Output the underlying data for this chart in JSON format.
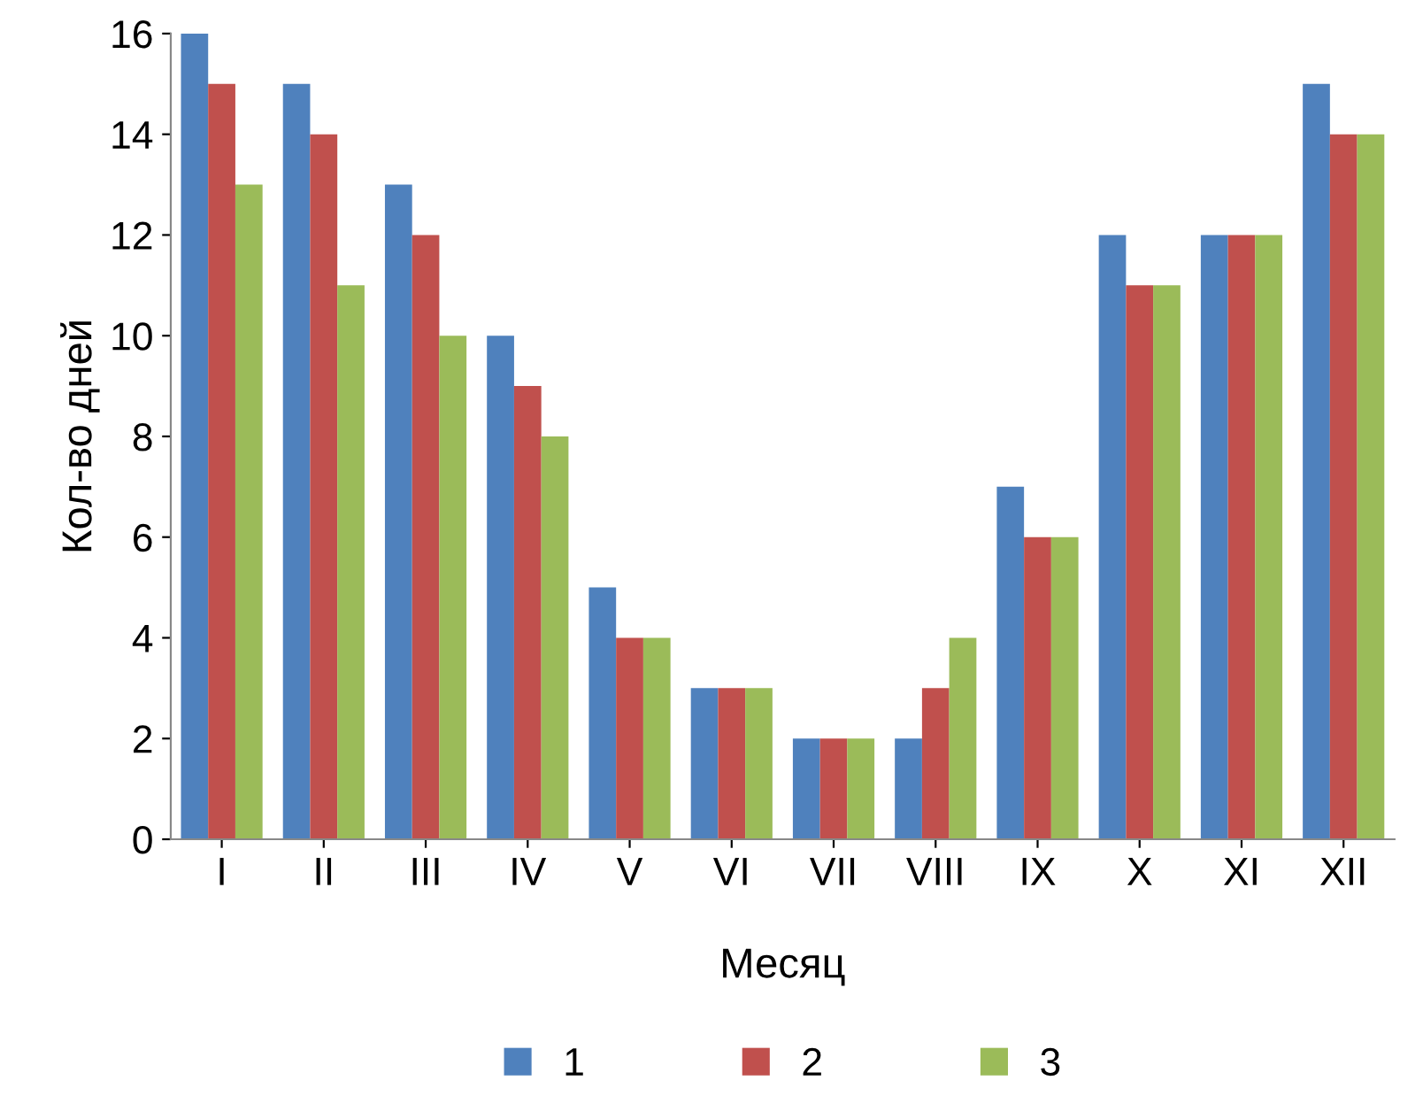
{
  "chart_data": {
    "type": "bar",
    "xlabel": "Месяц",
    "ylabel": "Кол-во дней",
    "categories": [
      "I",
      "II",
      "III",
      "IV",
      "V",
      "VI",
      "VII",
      "VIII",
      "IX",
      "X",
      "XI",
      "XII"
    ],
    "series": [
      {
        "name": "1",
        "color": "#4f81bd",
        "values": [
          16,
          15,
          13,
          10,
          5,
          3,
          2,
          2,
          7,
          12,
          12,
          15
        ]
      },
      {
        "name": "2",
        "color": "#c0504d",
        "values": [
          15,
          14,
          12,
          9,
          4,
          3,
          2,
          3,
          6,
          11,
          12,
          14
        ]
      },
      {
        "name": "3",
        "color": "#9bbb59",
        "values": [
          13,
          11,
          10,
          8,
          4,
          3,
          2,
          4,
          6,
          11,
          12,
          14
        ]
      }
    ],
    "ylim": [
      0,
      16
    ],
    "yticks": [
      0,
      2,
      4,
      6,
      8,
      10,
      12,
      14,
      16
    ],
    "grid": false,
    "legend": "bottom"
  }
}
